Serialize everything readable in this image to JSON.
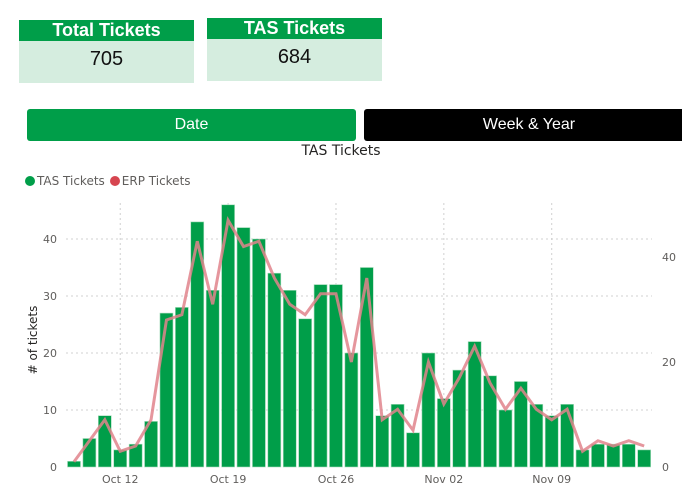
{
  "cards": {
    "total": {
      "label": "Total Tickets",
      "value": "705"
    },
    "tas": {
      "label": "TAS Tickets",
      "value": "684"
    }
  },
  "toggle": {
    "date_label": "Date",
    "week_label": "Week & Year"
  },
  "colors": {
    "accent_green": "#009e49",
    "card_body": "#d5eddf",
    "erp_line": "#e0848c"
  },
  "chart_data": {
    "type": "bar",
    "title": "TAS Tickets",
    "legend": [
      {
        "name": "TAS Tickets",
        "color": "#009e49"
      },
      {
        "name": "ERP Tickets",
        "color": "#d64550"
      }
    ],
    "legend_position": "top-left",
    "xlabel": "",
    "ylabel": "# of tickets",
    "ylim": [
      0,
      46
    ],
    "y2lim": [
      0,
      50
    ],
    "yticks": [
      0,
      10,
      20,
      30,
      40
    ],
    "y2ticks": [
      0,
      20,
      40
    ],
    "xtick_labels": [
      "Oct 12",
      "Oct 19",
      "Oct 26",
      "Nov 02",
      "Nov 09"
    ],
    "grid": true,
    "categories": [
      "Oct 09",
      "Oct 10",
      "Oct 11",
      "Oct 12",
      "Oct 13",
      "Oct 14",
      "Oct 15",
      "Oct 16",
      "Oct 17",
      "Oct 18",
      "Oct 19",
      "Oct 20",
      "Oct 21",
      "Oct 22",
      "Oct 23",
      "Oct 24",
      "Oct 25",
      "Oct 26",
      "Oct 27",
      "Oct 28",
      "Oct 29",
      "Oct 30",
      "Oct 31",
      "Nov 01",
      "Nov 02",
      "Nov 03",
      "Nov 04",
      "Nov 05",
      "Nov 06",
      "Nov 07",
      "Nov 08",
      "Nov 09",
      "Nov 10",
      "Nov 11",
      "Nov 12",
      "Nov 13",
      "Nov 14",
      "Nov 15"
    ],
    "series": [
      {
        "name": "TAS Tickets",
        "type": "bar",
        "axis": "left",
        "values": [
          1,
          5,
          9,
          3,
          4,
          8,
          27,
          28,
          43,
          31,
          46,
          42,
          40,
          34,
          31,
          26,
          32,
          32,
          20,
          35,
          9,
          11,
          6,
          20,
          12,
          17,
          22,
          16,
          10,
          15,
          11,
          9,
          11,
          3,
          4,
          4,
          4,
          3
        ]
      },
      {
        "name": "ERP Tickets",
        "type": "line",
        "axis": "right",
        "values": [
          1,
          5,
          9,
          3,
          4,
          9,
          28,
          29,
          43,
          31,
          47,
          42,
          43,
          36,
          31,
          29,
          33,
          33,
          20,
          36,
          9,
          11,
          7,
          20,
          12,
          17,
          23,
          16,
          11,
          15,
          11,
          9,
          11,
          3,
          5,
          4,
          5,
          4
        ]
      }
    ]
  }
}
